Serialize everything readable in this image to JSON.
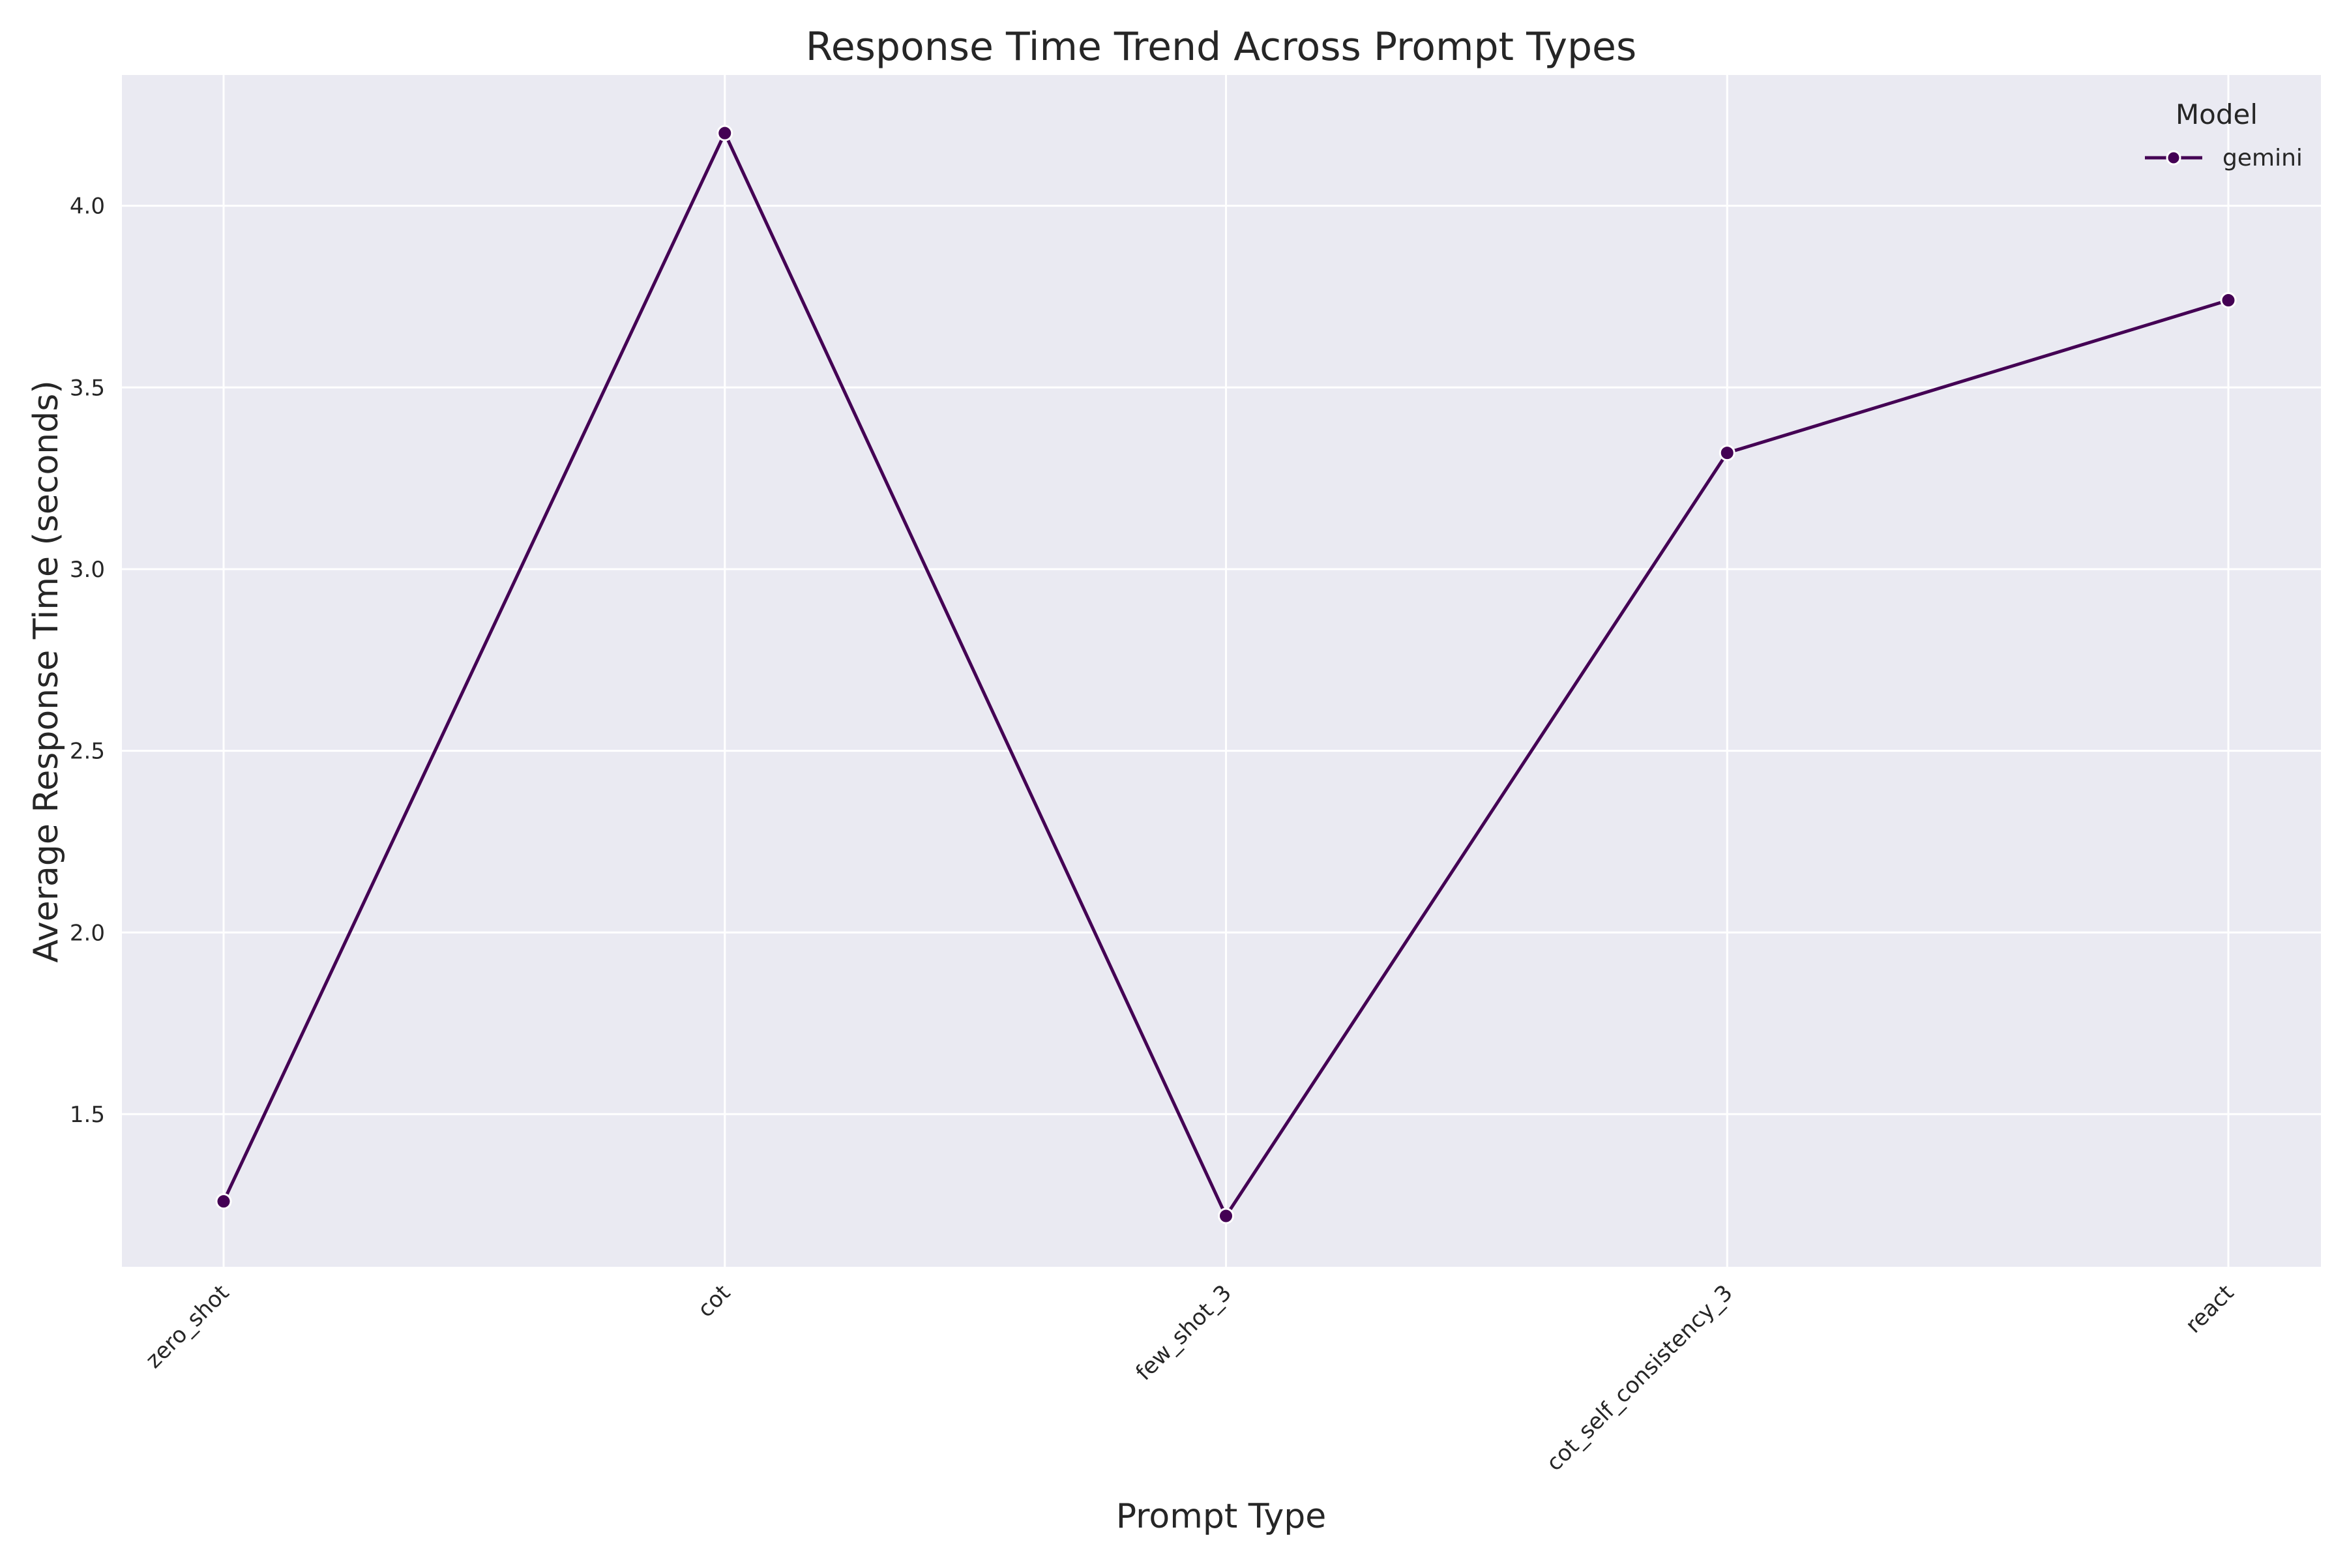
{
  "chart_data": {
    "type": "line",
    "title": "Response Time Trend Across Prompt Types",
    "xlabel": "Prompt Type",
    "ylabel": "Average Response Time (seconds)",
    "categories": [
      "zero_shot",
      "cot",
      "few_shot_3",
      "cot_self_consistency_3",
      "react"
    ],
    "series": [
      {
        "name": "gemini",
        "values": [
          1.26,
          4.2,
          1.22,
          3.32,
          3.74
        ]
      }
    ],
    "ylim": [
      1.08,
      4.36
    ],
    "yticks": [
      1.5,
      2.0,
      2.5,
      3.0,
      3.5,
      4.0
    ],
    "ytick_labels": [
      "1.5",
      "2.0",
      "2.5",
      "3.0",
      "3.5",
      "4.0"
    ],
    "grid": true,
    "legend": {
      "title": "Model",
      "placement": "top-right"
    },
    "colors": {
      "background": "#eaeaf2",
      "grid": "#ffffff",
      "series": "#440154"
    }
  }
}
